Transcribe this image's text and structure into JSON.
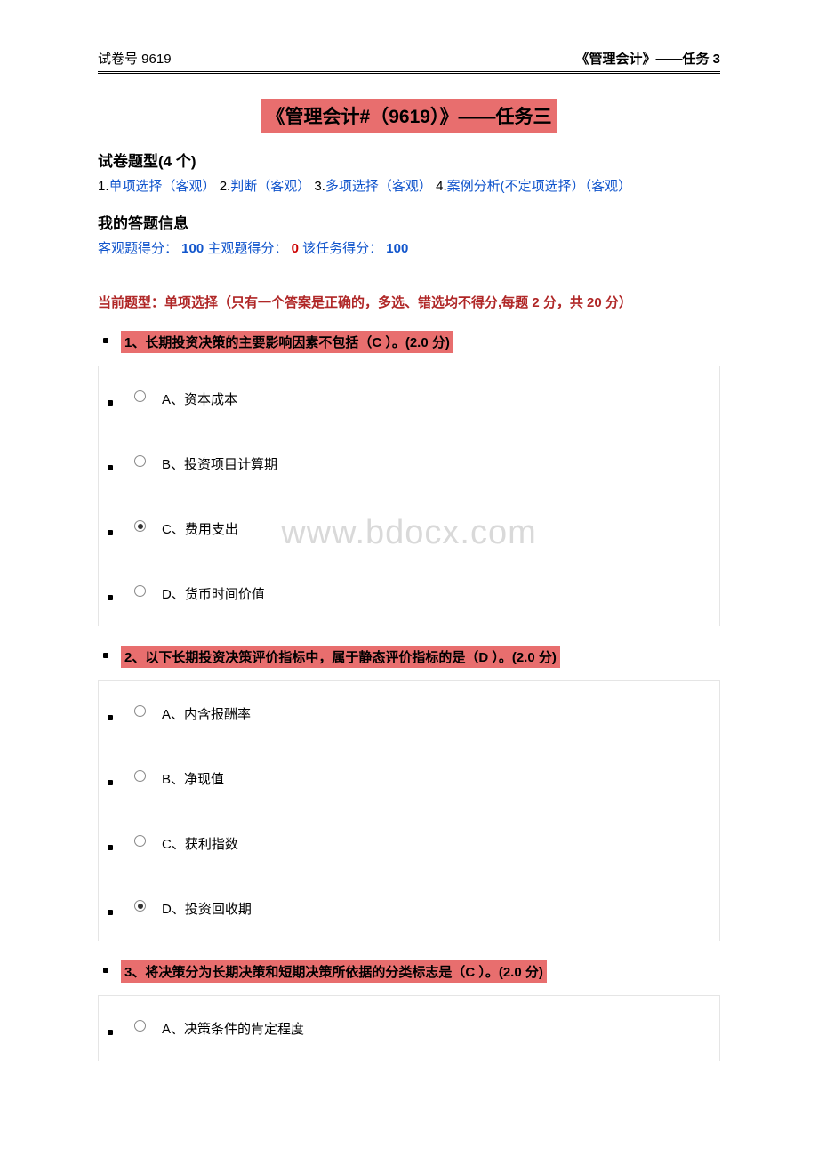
{
  "header": {
    "left": "试卷号 9619",
    "right": "《管理会计》——任务 3"
  },
  "title": "《管理会计#（9619）》——任务三",
  "typesHeading": "试卷题型(4 个)",
  "types": {
    "n1": "1.",
    "t1": "单项选择（客观）",
    "n2": " 2.",
    "t2": "判断（客观）",
    "n3": "3.",
    "t3": "多项选择（客观）",
    "n4": " 4.",
    "t4": "案例分析(不定项选择）（客观）"
  },
  "myAnsHeading": "我的答题信息",
  "scores": {
    "l1": "客观题得分：",
    "v1": " 100",
    "l2": " 主观题得分：",
    "v2": " 0",
    "l3": " 该任务得分：",
    "v3": " 100"
  },
  "instr": "当前题型：单项选择（只有一个答案是正确的，多选、错选均不得分,每题 2 分，共 20 分）",
  "q1": {
    "stem": "1、长期投资决策的主要影响因素不包括（C ）。(2.0 分)",
    "a": "A、资本成本",
    "b": "B、投资项目计算期",
    "c": "C、费用支出",
    "d": "D、货币时间价值",
    "selected": "c"
  },
  "q2": {
    "stem": "2、以下长期投资决策评价指标中，属于静态评价指标的是（D ）。(2.0 分)",
    "a": "A、内含报酬率",
    "b": "B、净现值",
    "c": "C、获利指数",
    "d": "D、投资回收期",
    "selected": "d"
  },
  "q3": {
    "stem": "3、将决策分为长期决策和短期决策所依据的分类标志是（C ）。(2.0 分)",
    "a": "A、决策条件的肯定程度",
    "selected": ""
  },
  "watermark": "www.bdocx.com",
  "colors": {
    "highlight": "#e86e6e",
    "link": "#1155cc",
    "error": "#cc0000",
    "instr": "#b02727",
    "watermark": "#d9d9d9",
    "border": "#e5e5e5"
  }
}
